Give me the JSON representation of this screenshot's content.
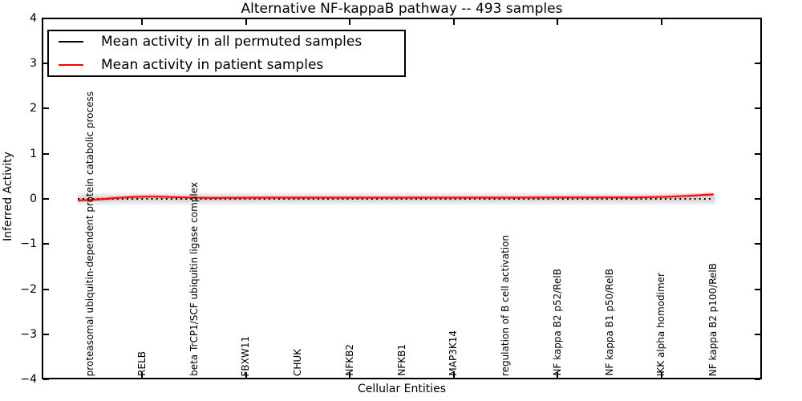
{
  "title": "Alternative NF-kappaB pathway -- 493 samples",
  "axes": {
    "x_label": "Cellular Entities",
    "y_label": "Inferred Activity",
    "y_ticks": [
      "4",
      "3",
      "2",
      "1",
      "0",
      "−1",
      "−2",
      "−3",
      "−4"
    ]
  },
  "legend": {
    "items": [
      {
        "label": "Mean activity in all permuted samples",
        "color": "#000000"
      },
      {
        "label": "Mean activity in patient samples",
        "color": "#ff0000"
      }
    ]
  },
  "chart_data": {
    "type": "line",
    "title": "Alternative NF-kappaB pathway -- 493 samples",
    "xlabel": "Cellular Entities",
    "ylabel": "Inferred Activity",
    "ylim": [
      -4,
      4
    ],
    "grid": false,
    "legend_position": "upper left",
    "samples_count_in_title": 493,
    "categories": [
      "proteasomal ubiquitin-dependent protein catabolic process",
      "RELB",
      "beta TrCP1/SCF ubiquitin ligase complex",
      "FBXW11",
      "CHUK",
      "NFKB2",
      "NFKB1",
      "MAP3K14",
      "regulation of B cell activation",
      "NF kappa B2 p52/RelB",
      "NF kappa B1 p50/RelB",
      "IKK alpha homodimer",
      "NF kappa B2 p100/RelB"
    ],
    "series": [
      {
        "name": "Mean activity in all permuted samples",
        "color": "#000000",
        "style": "dotted",
        "values": [
          0,
          0,
          0,
          0,
          0,
          0,
          0,
          0,
          0,
          0,
          0,
          0,
          0
        ]
      },
      {
        "name": "Mean activity in patient samples",
        "color": "#ff0000",
        "style": "solid",
        "values": [
          -0.03,
          0.07,
          0.018,
          0.027,
          0.027,
          0.027,
          0.027,
          0.027,
          0.027,
          0.03,
          0.03,
          0.035,
          0.1
        ]
      }
    ],
    "band": {
      "name": "spread of permuted sample activity",
      "center": 0,
      "outer_halfwidth": 0.13,
      "inner_halfwidth": 0.07,
      "outer_color": "#ededed",
      "inner_color": "#dcdcdc"
    }
  }
}
